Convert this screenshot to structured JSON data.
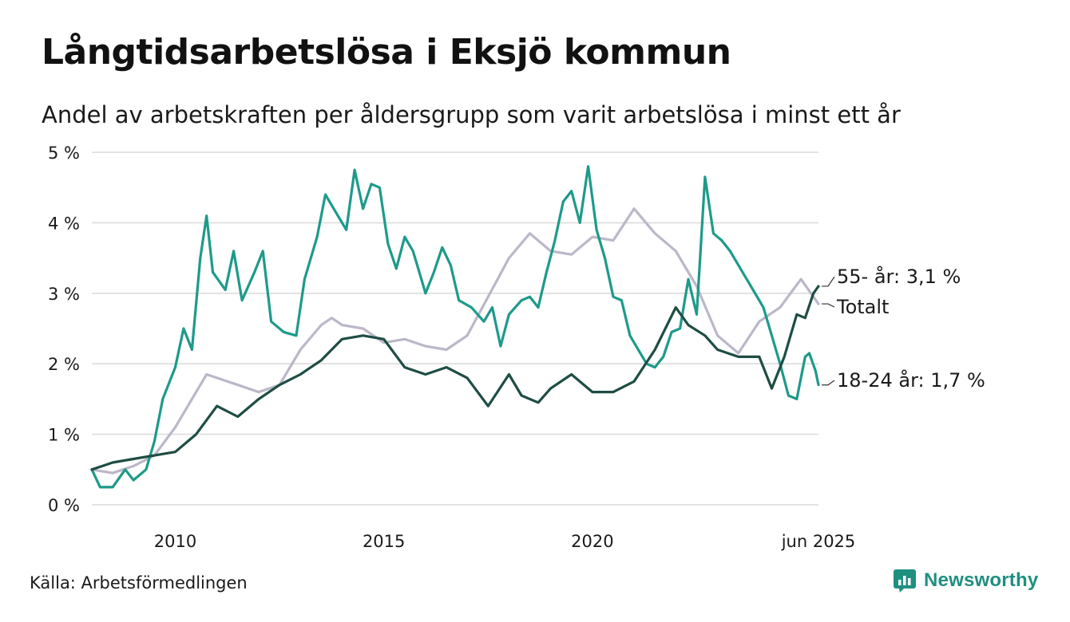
{
  "title": "Långtidsarbetslösa i Eksjö kommun",
  "subtitle": "Andel av arbetskraften per åldersgrupp som varit arbetslösa i minst ett år",
  "source": "Källa: Arbetsförmedlingen",
  "brand": {
    "name": "Newsworthy",
    "icon": "newsworthy-logo-icon",
    "color": "#1f8f80"
  },
  "chart_data": {
    "type": "line",
    "title": "Långtidsarbetslösa i Eksjö kommun",
    "subtitle": "Andel av arbetskraften per åldersgrupp som varit arbetslösa i minst ett år",
    "x_unit": "decimal year",
    "xlim": [
      2008.0,
      2025.42
    ],
    "ylim": [
      0,
      5
    ],
    "y_ticks": [
      0,
      1,
      2,
      3,
      4,
      5
    ],
    "y_tick_labels": [
      "0 %",
      "1 %",
      "2 %",
      "3 %",
      "4 %",
      "5 %"
    ],
    "x_ticks": [
      2010,
      2015,
      2020,
      2025.42
    ],
    "x_tick_labels": [
      "2010",
      "2015",
      "2020",
      "jun 2025"
    ],
    "grid": true,
    "series": [
      {
        "name": "Totalt",
        "end_label": "Totalt",
        "color": "#bcb7c8",
        "points": [
          [
            2008.0,
            0.5
          ],
          [
            2008.5,
            0.45
          ],
          [
            2009.0,
            0.55
          ],
          [
            2009.5,
            0.7
          ],
          [
            2010.0,
            1.1
          ],
          [
            2010.5,
            1.6
          ],
          [
            2010.75,
            1.85
          ],
          [
            2011.0,
            1.8
          ],
          [
            2011.5,
            1.7
          ],
          [
            2012.0,
            1.6
          ],
          [
            2012.5,
            1.7
          ],
          [
            2013.0,
            2.2
          ],
          [
            2013.5,
            2.55
          ],
          [
            2013.75,
            2.65
          ],
          [
            2014.0,
            2.55
          ],
          [
            2014.5,
            2.5
          ],
          [
            2015.0,
            2.3
          ],
          [
            2015.5,
            2.35
          ],
          [
            2016.0,
            2.25
          ],
          [
            2016.5,
            2.2
          ],
          [
            2017.0,
            2.4
          ],
          [
            2017.5,
            2.95
          ],
          [
            2018.0,
            3.5
          ],
          [
            2018.5,
            3.85
          ],
          [
            2019.0,
            3.6
          ],
          [
            2019.5,
            3.55
          ],
          [
            2020.0,
            3.8
          ],
          [
            2020.5,
            3.75
          ],
          [
            2021.0,
            4.2
          ],
          [
            2021.5,
            3.85
          ],
          [
            2022.0,
            3.6
          ],
          [
            2022.5,
            3.1
          ],
          [
            2023.0,
            2.4
          ],
          [
            2023.5,
            2.15
          ],
          [
            2024.0,
            2.6
          ],
          [
            2024.5,
            2.8
          ],
          [
            2025.0,
            3.2
          ],
          [
            2025.42,
            2.85
          ]
        ]
      },
      {
        "name": "18-24 år",
        "end_label": "18-24 år: 1,7 %",
        "color": "#1d9a8a",
        "points": [
          [
            2008.0,
            0.5
          ],
          [
            2008.2,
            0.25
          ],
          [
            2008.5,
            0.25
          ],
          [
            2008.8,
            0.5
          ],
          [
            2009.0,
            0.35
          ],
          [
            2009.3,
            0.5
          ],
          [
            2009.5,
            0.9
          ],
          [
            2009.7,
            1.5
          ],
          [
            2010.0,
            1.95
          ],
          [
            2010.2,
            2.5
          ],
          [
            2010.4,
            2.2
          ],
          [
            2010.6,
            3.5
          ],
          [
            2010.75,
            4.1
          ],
          [
            2010.9,
            3.3
          ],
          [
            2011.2,
            3.05
          ],
          [
            2011.4,
            3.6
          ],
          [
            2011.6,
            2.9
          ],
          [
            2011.9,
            3.3
          ],
          [
            2012.1,
            3.6
          ],
          [
            2012.3,
            2.6
          ],
          [
            2012.6,
            2.45
          ],
          [
            2012.9,
            2.4
          ],
          [
            2013.1,
            3.2
          ],
          [
            2013.4,
            3.8
          ],
          [
            2013.6,
            4.4
          ],
          [
            2013.9,
            4.1
          ],
          [
            2014.1,
            3.9
          ],
          [
            2014.3,
            4.75
          ],
          [
            2014.5,
            4.2
          ],
          [
            2014.7,
            4.55
          ],
          [
            2014.9,
            4.5
          ],
          [
            2015.1,
            3.7
          ],
          [
            2015.3,
            3.35
          ],
          [
            2015.5,
            3.8
          ],
          [
            2015.7,
            3.6
          ],
          [
            2015.9,
            3.2
          ],
          [
            2016.0,
            3.0
          ],
          [
            2016.2,
            3.3
          ],
          [
            2016.4,
            3.65
          ],
          [
            2016.6,
            3.4
          ],
          [
            2016.8,
            2.9
          ],
          [
            2017.1,
            2.8
          ],
          [
            2017.4,
            2.6
          ],
          [
            2017.6,
            2.8
          ],
          [
            2017.8,
            2.25
          ],
          [
            2018.0,
            2.7
          ],
          [
            2018.3,
            2.9
          ],
          [
            2018.5,
            2.95
          ],
          [
            2018.7,
            2.8
          ],
          [
            2018.9,
            3.3
          ],
          [
            2019.1,
            3.75
          ],
          [
            2019.3,
            4.3
          ],
          [
            2019.5,
            4.45
          ],
          [
            2019.7,
            4.0
          ],
          [
            2019.9,
            4.8
          ],
          [
            2020.1,
            3.9
          ],
          [
            2020.3,
            3.5
          ],
          [
            2020.5,
            2.95
          ],
          [
            2020.7,
            2.9
          ],
          [
            2020.9,
            2.4
          ],
          [
            2021.1,
            2.2
          ],
          [
            2021.3,
            2.0
          ],
          [
            2021.5,
            1.95
          ],
          [
            2021.7,
            2.1
          ],
          [
            2021.9,
            2.45
          ],
          [
            2022.1,
            2.5
          ],
          [
            2022.3,
            3.2
          ],
          [
            2022.5,
            2.7
          ],
          [
            2022.7,
            4.65
          ],
          [
            2022.9,
            3.85
          ],
          [
            2023.1,
            3.75
          ],
          [
            2023.3,
            3.6
          ],
          [
            2023.5,
            3.4
          ],
          [
            2023.7,
            3.2
          ],
          [
            2023.9,
            3.0
          ],
          [
            2024.1,
            2.8
          ],
          [
            2024.3,
            2.4
          ],
          [
            2024.5,
            2.0
          ],
          [
            2024.7,
            1.55
          ],
          [
            2024.9,
            1.5
          ],
          [
            2025.1,
            2.1
          ],
          [
            2025.2,
            2.15
          ],
          [
            2025.35,
            1.9
          ],
          [
            2025.42,
            1.7
          ]
        ]
      },
      {
        "name": "55- år",
        "end_label": "55- år: 3,1 %",
        "color": "#1e4d44",
        "points": [
          [
            2008.0,
            0.5
          ],
          [
            2008.5,
            0.6
          ],
          [
            2009.0,
            0.65
          ],
          [
            2009.5,
            0.7
          ],
          [
            2010.0,
            0.75
          ],
          [
            2010.5,
            1.0
          ],
          [
            2011.0,
            1.4
          ],
          [
            2011.5,
            1.25
          ],
          [
            2012.0,
            1.5
          ],
          [
            2012.5,
            1.7
          ],
          [
            2013.0,
            1.85
          ],
          [
            2013.5,
            2.05
          ],
          [
            2014.0,
            2.35
          ],
          [
            2014.5,
            2.4
          ],
          [
            2015.0,
            2.35
          ],
          [
            2015.5,
            1.95
          ],
          [
            2016.0,
            1.85
          ],
          [
            2016.5,
            1.95
          ],
          [
            2017.0,
            1.8
          ],
          [
            2017.5,
            1.4
          ],
          [
            2018.0,
            1.85
          ],
          [
            2018.3,
            1.55
          ],
          [
            2018.7,
            1.45
          ],
          [
            2019.0,
            1.65
          ],
          [
            2019.5,
            1.85
          ],
          [
            2020.0,
            1.6
          ],
          [
            2020.5,
            1.6
          ],
          [
            2021.0,
            1.75
          ],
          [
            2021.5,
            2.2
          ],
          [
            2022.0,
            2.8
          ],
          [
            2022.3,
            2.55
          ],
          [
            2022.7,
            2.4
          ],
          [
            2023.0,
            2.2
          ],
          [
            2023.5,
            2.1
          ],
          [
            2024.0,
            2.1
          ],
          [
            2024.3,
            1.65
          ],
          [
            2024.6,
            2.1
          ],
          [
            2024.9,
            2.7
          ],
          [
            2025.1,
            2.65
          ],
          [
            2025.3,
            3.0
          ],
          [
            2025.42,
            3.1
          ]
        ]
      }
    ]
  }
}
